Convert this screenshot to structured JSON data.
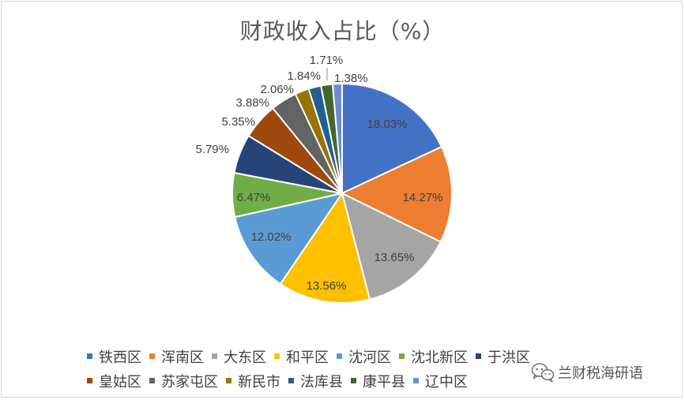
{
  "chart_data": {
    "type": "pie",
    "title": "财政收入占比（%）",
    "labels": [
      "铁西区",
      "浑南区",
      "大东区",
      "和平区",
      "沈河区",
      "沈北新区",
      "于洪区",
      "皇姑区",
      "苏家屯区",
      "新民市",
      "法库县",
      "康平县",
      "辽中区"
    ],
    "values": [
      18.03,
      14.27,
      13.65,
      13.56,
      12.02,
      6.47,
      5.79,
      5.35,
      3.88,
      2.06,
      1.84,
      1.71,
      1.38
    ],
    "data_labels": [
      "18.03%",
      "14.27%",
      "13.65%",
      "13.56%",
      "12.02%",
      "6.47%",
      "5.79%",
      "5.35%",
      "3.88%",
      "2.06%",
      "1.84%",
      "1.71%",
      "1.38%"
    ],
    "colors": [
      "#4472C4",
      "#ED7D31",
      "#A5A5A5",
      "#FFC000",
      "#5B9BD5",
      "#70AD47",
      "#264478",
      "#9E480E",
      "#636363",
      "#997300",
      "#255E91",
      "#43682B",
      "#698ED0"
    ],
    "legend_position": "bottom"
  },
  "watermark": {
    "text": "兰财税海研语",
    "icon": "wechat-icon"
  }
}
